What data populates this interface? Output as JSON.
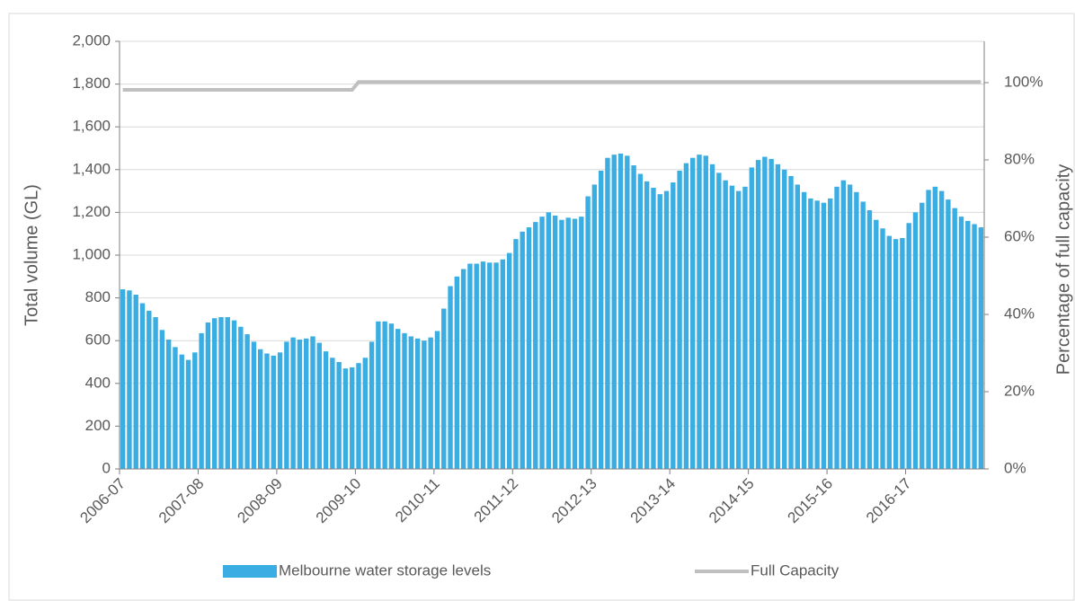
{
  "chart_data": {
    "type": "bar",
    "categories": [
      "2006-07",
      null,
      null,
      null,
      null,
      null,
      null,
      null,
      null,
      null,
      null,
      null,
      "2007-08",
      null,
      null,
      null,
      null,
      null,
      null,
      null,
      null,
      null,
      null,
      null,
      "2008-09",
      null,
      null,
      null,
      null,
      null,
      null,
      null,
      null,
      null,
      null,
      null,
      "2009-10",
      null,
      null,
      null,
      null,
      null,
      null,
      null,
      null,
      null,
      null,
      null,
      "2010-11",
      null,
      null,
      null,
      null,
      null,
      null,
      null,
      null,
      null,
      null,
      null,
      "2011-12",
      null,
      null,
      null,
      null,
      null,
      null,
      null,
      null,
      null,
      null,
      null,
      "2012-13",
      null,
      null,
      null,
      null,
      null,
      null,
      null,
      null,
      null,
      null,
      null,
      "2013-14",
      null,
      null,
      null,
      null,
      null,
      null,
      null,
      null,
      null,
      null,
      null,
      "2014-15",
      null,
      null,
      null,
      null,
      null,
      null,
      null,
      null,
      null,
      null,
      null,
      "2015-16",
      null,
      null,
      null,
      null,
      null,
      null,
      null,
      null,
      null,
      null,
      null,
      "2016-17",
      null,
      null,
      null,
      null,
      null,
      null,
      null,
      null,
      null,
      null,
      null
    ],
    "series": [
      {
        "name": "Melbourne water storage levels",
        "color": "#3aaee2",
        "type": "bar",
        "values": [
          840,
          835,
          815,
          775,
          740,
          710,
          650,
          605,
          570,
          535,
          510,
          545,
          635,
          685,
          705,
          710,
          710,
          695,
          665,
          630,
          595,
          560,
          540,
          530,
          545,
          595,
          615,
          605,
          610,
          620,
          590,
          550,
          520,
          500,
          470,
          475,
          495,
          520,
          595,
          690,
          690,
          680,
          655,
          635,
          620,
          610,
          600,
          615,
          645,
          750,
          855,
          900,
          935,
          960,
          960,
          970,
          965,
          965,
          980,
          1010,
          1075,
          1110,
          1130,
          1155,
          1180,
          1200,
          1185,
          1165,
          1175,
          1170,
          1180,
          1275,
          1330,
          1395,
          1455,
          1470,
          1475,
          1465,
          1420,
          1380,
          1345,
          1315,
          1285,
          1300,
          1340,
          1395,
          1430,
          1455,
          1470,
          1465,
          1425,
          1385,
          1350,
          1325,
          1300,
          1320,
          1410,
          1445,
          1460,
          1450,
          1425,
          1400,
          1370,
          1330,
          1295,
          1265,
          1255,
          1245,
          1265,
          1320,
          1350,
          1330,
          1295,
          1250,
          1210,
          1165,
          1125,
          1090,
          1075,
          1080,
          1150,
          1200,
          1245,
          1305,
          1320,
          1300,
          1260,
          1220,
          1180,
          1160,
          1145,
          1130
        ]
      },
      {
        "name": "Full Capacity",
        "color": "#bfbfbf",
        "type": "line",
        "values": [
          1773,
          1773,
          1773,
          1773,
          1773,
          1773,
          1773,
          1773,
          1773,
          1773,
          1773,
          1773,
          1773,
          1773,
          1773,
          1773,
          1773,
          1773,
          1773,
          1773,
          1773,
          1773,
          1773,
          1773,
          1773,
          1773,
          1773,
          1773,
          1773,
          1773,
          1773,
          1773,
          1773,
          1773,
          1773,
          1773,
          1810,
          1810,
          1810,
          1810,
          1810,
          1810,
          1810,
          1810,
          1810,
          1810,
          1810,
          1810,
          1810,
          1810,
          1810,
          1810,
          1810,
          1810,
          1810,
          1810,
          1810,
          1810,
          1810,
          1810,
          1810,
          1810,
          1810,
          1810,
          1810,
          1810,
          1810,
          1810,
          1810,
          1810,
          1810,
          1810,
          1810,
          1810,
          1810,
          1810,
          1810,
          1810,
          1810,
          1810,
          1810,
          1810,
          1810,
          1810,
          1810,
          1810,
          1810,
          1810,
          1810,
          1810,
          1810,
          1810,
          1810,
          1810,
          1810,
          1810,
          1810,
          1810,
          1810,
          1810,
          1810,
          1810,
          1810,
          1810,
          1810,
          1810,
          1810,
          1810,
          1810,
          1810,
          1810,
          1810,
          1810,
          1810,
          1810,
          1810,
          1810,
          1810,
          1810,
          1810,
          1810,
          1810,
          1810,
          1810,
          1810,
          1810,
          1810,
          1810,
          1810,
          1810,
          1810,
          1810
        ]
      }
    ],
    "y_label": "Total volume (GL)",
    "y2_label": "Percentage of full capacity",
    "ylim": [
      0,
      2000
    ],
    "yticks": [
      0,
      200,
      400,
      600,
      800,
      {
        "value": 1000,
        "label": "1,000"
      },
      {
        "value": 1200,
        "label": "1,200"
      },
      {
        "value": 1400,
        "label": "1,400"
      },
      {
        "value": 1600,
        "label": "1,600"
      },
      {
        "value": 1800,
        "label": "1,800"
      },
      {
        "value": 2000,
        "label": "2,000"
      }
    ],
    "y2lim": [
      0,
      110.7
    ],
    "y2ticks": [
      {
        "value": 0,
        "label": "0%"
      },
      {
        "value": 20,
        "label": "20%"
      },
      {
        "value": 40,
        "label": "40%"
      },
      {
        "value": 60,
        "label": "60%"
      },
      {
        "value": 80,
        "label": "80%"
      },
      {
        "value": 100,
        "label": "100%"
      }
    ],
    "grid": true,
    "legend": "bottom"
  }
}
